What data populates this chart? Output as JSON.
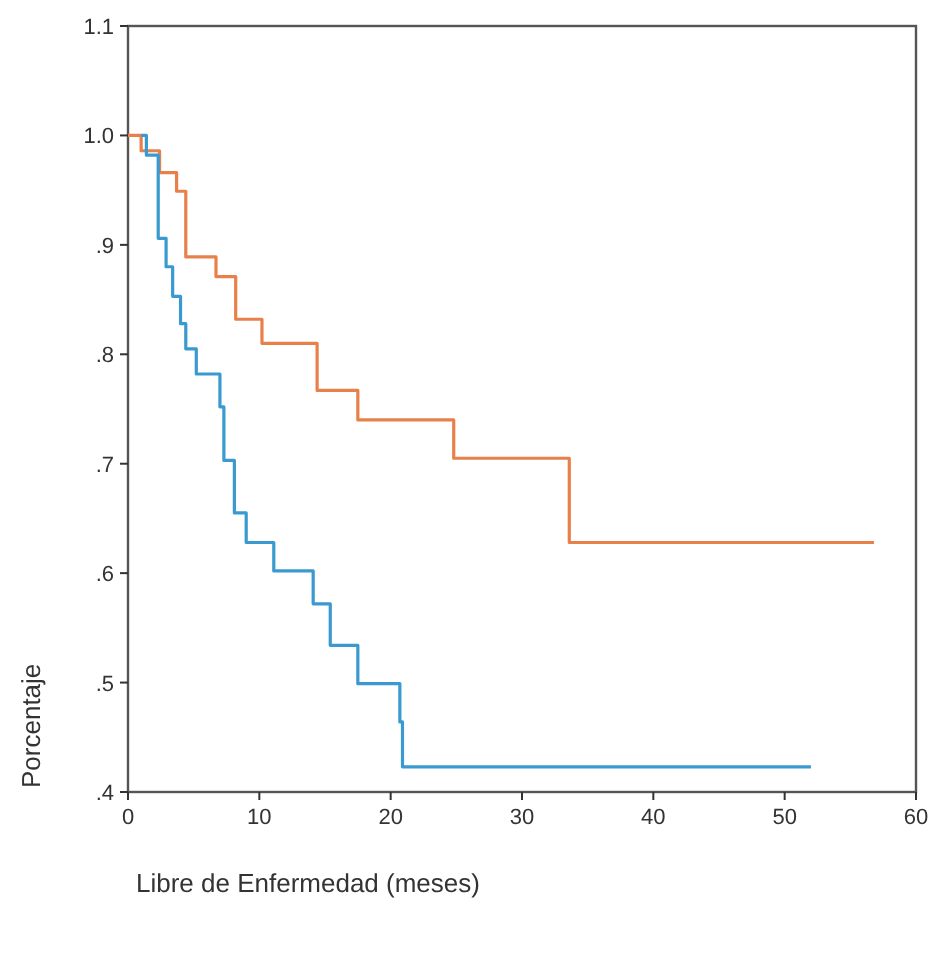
{
  "chart_data": {
    "type": "step",
    "xlabel": "Libre de Enfermedad (meses)",
    "ylabel": "Porcentaje",
    "xlim": [
      0,
      60
    ],
    "ylim": [
      0.4,
      1.1
    ],
    "xticks": [
      0,
      10,
      20,
      30,
      40,
      50,
      60
    ],
    "yticks": [
      {
        "value": 0.4,
        "label": ".4"
      },
      {
        "value": 0.5,
        "label": ".5"
      },
      {
        "value": 0.6,
        "label": ".6"
      },
      {
        "value": 0.7,
        "label": ".7"
      },
      {
        "value": 0.8,
        "label": ".8"
      },
      {
        "value": 0.9,
        "label": ".9"
      },
      {
        "value": 1.0,
        "label": "1.0"
      },
      {
        "value": 1.1,
        "label": "1.1"
      }
    ],
    "grid": false,
    "series": [
      {
        "color": "#e8804a",
        "x": [
          0,
          1.0,
          2.4,
          3.7,
          4.4,
          6.7,
          8.2,
          10.2,
          14.4,
          17.5,
          24.8,
          33.6,
          56.8
        ],
        "values": [
          1.0,
          0.986,
          0.966,
          0.949,
          0.889,
          0.871,
          0.832,
          0.81,
          0.767,
          0.74,
          0.705,
          0.628,
          0.628
        ]
      },
      {
        "color": "#3a9ad0",
        "x": [
          1.0,
          1.4,
          2.3,
          2.9,
          3.4,
          4.0,
          4.4,
          5.2,
          7.0,
          7.3,
          8.1,
          9.0,
          11.1,
          14.1,
          15.4,
          17.5,
          20.7,
          20.9,
          52.0
        ],
        "values": [
          1.0,
          0.982,
          0.906,
          0.88,
          0.853,
          0.828,
          0.805,
          0.782,
          0.752,
          0.703,
          0.655,
          0.628,
          0.602,
          0.572,
          0.534,
          0.499,
          0.464,
          0.423,
          0.423
        ]
      }
    ]
  }
}
